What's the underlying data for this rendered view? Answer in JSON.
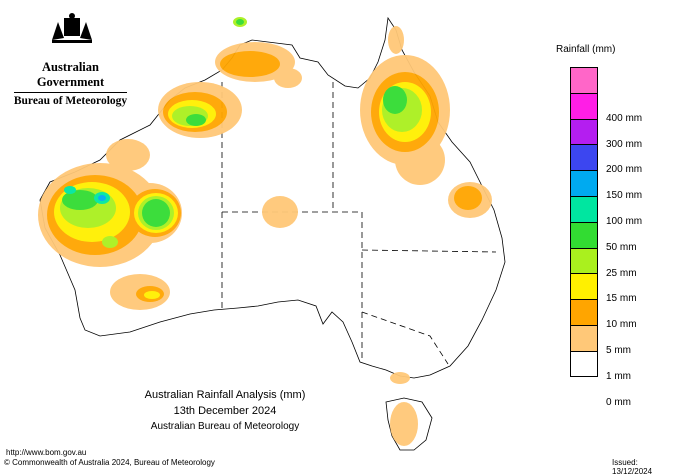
{
  "header": {
    "government": "Australian Government",
    "bureau": "Bureau of Meteorology"
  },
  "title": {
    "line1": "Australian Rainfall Analysis (mm)",
    "line2": "13th December 2024",
    "line3": "Australian Bureau of Meteorology"
  },
  "legend": {
    "title": "Rainfall (mm)",
    "items": [
      {
        "label": "",
        "color": "#ff66c8"
      },
      {
        "label": "400 mm",
        "color": "#ff1ee6"
      },
      {
        "label": "300 mm",
        "color": "#b41ef0"
      },
      {
        "label": "200 mm",
        "color": "#3c46f0"
      },
      {
        "label": "150 mm",
        "color": "#00aaf0"
      },
      {
        "label": "100 mm",
        "color": "#00e6a0"
      },
      {
        "label": "50 mm",
        "color": "#32dc32"
      },
      {
        "label": "25 mm",
        "color": "#aaf01e"
      },
      {
        "label": "15 mm",
        "color": "#fff000"
      },
      {
        "label": "10 mm",
        "color": "#ffa500"
      },
      {
        "label": "5 mm",
        "color": "#ffc878"
      },
      {
        "label": "1 mm",
        "color": "#ffffff"
      },
      {
        "label": "0 mm",
        "color": ""
      }
    ]
  },
  "footer": {
    "url": "http://www.bom.gov.au",
    "copyright": "© Commonwealth of Australia 2024, Bureau of Meteorology",
    "issued": "Issued: 13/12/2024"
  }
}
